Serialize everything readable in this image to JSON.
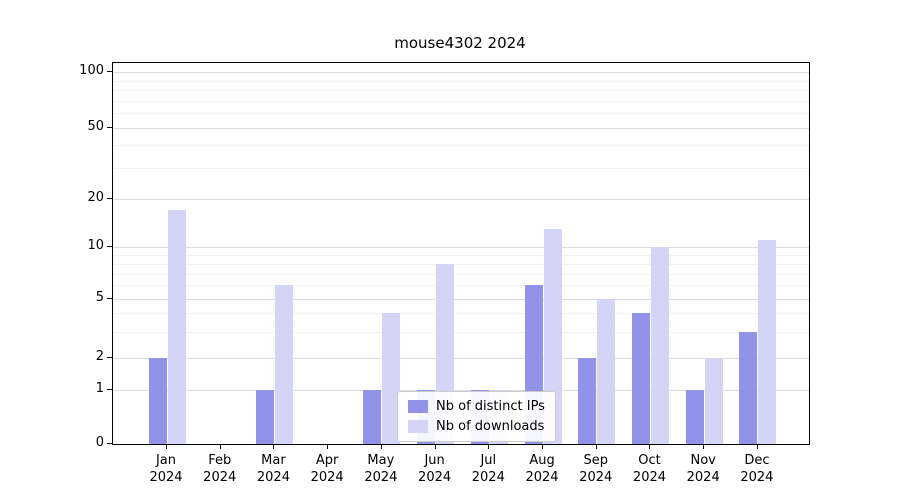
{
  "chart_data": {
    "type": "bar",
    "title": "mouse4302 2024",
    "categories": [
      "Jan",
      "Feb",
      "Mar",
      "Apr",
      "May",
      "Jun",
      "Jul",
      "Aug",
      "Sep",
      "Oct",
      "Nov",
      "Dec"
    ],
    "year_label": "2024",
    "series": [
      {
        "name": "Nb of distinct IPs",
        "color": "#9193e8",
        "values": [
          2,
          0,
          1,
          0,
          1,
          1,
          1,
          6,
          2,
          4,
          1,
          3
        ]
      },
      {
        "name": "Nb of downloads",
        "color": "#d4d4f6",
        "values": [
          17,
          0,
          6,
          0,
          4,
          8,
          1,
          13,
          5,
          10,
          2,
          11
        ]
      }
    ],
    "yticks": [
      0,
      1,
      2,
      5,
      10,
      20,
      50,
      100
    ],
    "yscale": "log-like with 0 baseline",
    "ylim": [
      0,
      115
    ],
    "xlabel": "",
    "ylabel": "",
    "grid": true,
    "legend_position": "lower center"
  }
}
